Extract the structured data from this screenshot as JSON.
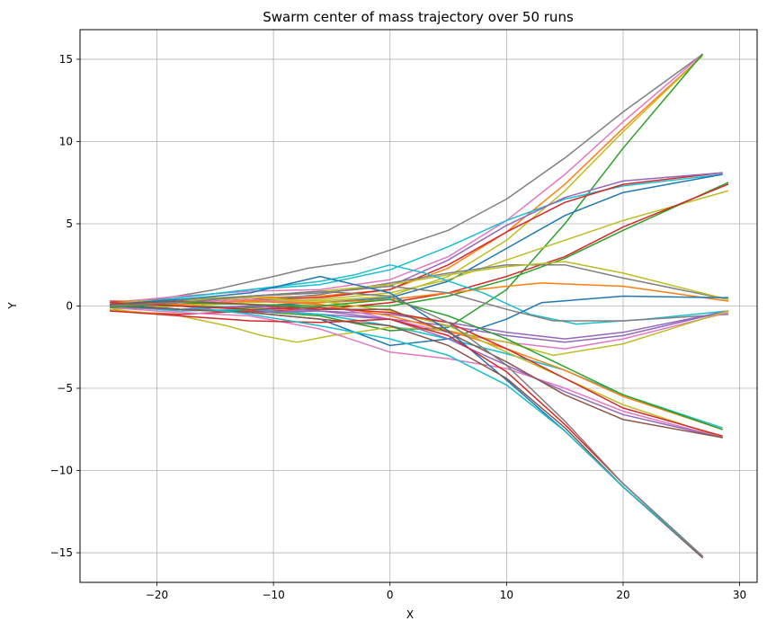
{
  "chart_data": {
    "type": "line",
    "title": "Swarm center of mass trajectory over 50 runs",
    "xlabel": "X",
    "ylabel": "Y",
    "xlim": [
      -26.6,
      31.5
    ],
    "ylim": [
      -16.8,
      16.8
    ],
    "xticks": [
      -20,
      -10,
      0,
      10,
      20,
      30
    ],
    "yticks": [
      -15,
      -10,
      -5,
      0,
      5,
      10,
      15
    ],
    "xtick_labels": [
      "−20",
      "−10",
      "0",
      "10",
      "20",
      "30"
    ],
    "ytick_labels": [
      "−15",
      "−10",
      "−5",
      "0",
      "5",
      "10",
      "15"
    ],
    "grid": true,
    "legend": "none",
    "series": [
      {
        "color": "#808080",
        "x": [
          -24,
          -20,
          -15,
          -10,
          -7,
          -3,
          0,
          5,
          10,
          15,
          20,
          26.8
        ],
        "y": [
          0.1,
          0.4,
          1.0,
          1.8,
          2.3,
          2.7,
          3.4,
          4.6,
          6.5,
          9.0,
          11.8,
          15.3
        ]
      },
      {
        "color": "#e377c2",
        "x": [
          -24,
          -18,
          -12,
          -6,
          0,
          5,
          10,
          15,
          20,
          26.8
        ],
        "y": [
          0.2,
          0.6,
          0.9,
          1.0,
          1.6,
          3.0,
          5.2,
          8.0,
          11.2,
          15.3
        ]
      },
      {
        "color": "#ff7f0e",
        "x": [
          -24,
          -18,
          -12,
          -6,
          0,
          5,
          10,
          15,
          20,
          26.8
        ],
        "y": [
          0.0,
          0.3,
          0.5,
          0.6,
          1.0,
          2.3,
          4.5,
          7.4,
          10.8,
          15.2
        ]
      },
      {
        "color": "#bcbd22",
        "x": [
          -24,
          -18,
          -12,
          -6,
          0,
          5,
          10,
          15,
          20,
          26.8
        ],
        "y": [
          -0.1,
          0.2,
          0.4,
          0.3,
          0.6,
          1.8,
          4.0,
          7.0,
          10.6,
          15.2
        ]
      },
      {
        "color": "#2ca02c",
        "x": [
          -24,
          -18,
          -12,
          -6,
          0,
          5,
          10,
          15,
          20,
          26.8
        ],
        "y": [
          0.1,
          -0.2,
          -0.3,
          -0.6,
          -1.5,
          -1.3,
          1.0,
          5.0,
          9.6,
          15.3
        ]
      },
      {
        "color": "#17becf",
        "x": [
          -24,
          -18,
          -12,
          -6,
          0,
          5,
          10,
          15,
          20,
          28.5
        ],
        "y": [
          0.0,
          0.5,
          1.0,
          1.3,
          2.2,
          3.6,
          5.2,
          6.5,
          7.3,
          8.0
        ]
      },
      {
        "color": "#d62728",
        "x": [
          -24,
          -18,
          -12,
          -6,
          0,
          5,
          10,
          15,
          20,
          28.5
        ],
        "y": [
          0.3,
          0.2,
          0.4,
          0.5,
          1.0,
          2.5,
          4.5,
          6.3,
          7.4,
          8.1
        ]
      },
      {
        "color": "#1f77b4",
        "x": [
          -24,
          -18,
          -12,
          -6,
          0,
          5,
          10,
          15,
          20,
          28.5
        ],
        "y": [
          0.2,
          -0.2,
          0.0,
          0.2,
          0.5,
          1.5,
          3.5,
          5.5,
          6.9,
          8.0
        ]
      },
      {
        "color": "#9467bd",
        "x": [
          -24,
          -18,
          -12,
          -6,
          0,
          5,
          10,
          15,
          20,
          28.5
        ],
        "y": [
          0.0,
          0.3,
          0.6,
          0.8,
          1.2,
          2.8,
          4.9,
          6.6,
          7.6,
          8.1
        ]
      },
      {
        "color": "#bcbd22",
        "x": [
          -24,
          -18,
          -12,
          -6,
          0,
          5,
          10,
          15,
          20,
          29
        ],
        "y": [
          -0.2,
          0.0,
          0.2,
          0.4,
          0.8,
          1.6,
          2.8,
          4.0,
          5.2,
          7.0
        ]
      },
      {
        "color": "#2ca02c",
        "x": [
          -24,
          -18,
          -12,
          -6,
          0,
          5,
          10,
          15,
          20,
          29
        ],
        "y": [
          0.1,
          0.0,
          -0.1,
          0.0,
          0.0,
          0.6,
          1.6,
          2.9,
          4.6,
          7.5
        ]
      },
      {
        "color": "#d62728",
        "x": [
          -24,
          -18,
          -12,
          -6,
          0,
          5,
          10,
          15,
          20,
          29
        ],
        "y": [
          -0.3,
          -0.5,
          -0.3,
          -0.2,
          0.2,
          0.8,
          1.8,
          3.0,
          4.8,
          7.4
        ]
      },
      {
        "color": "#808080",
        "x": [
          -24,
          -18,
          -12,
          -6,
          0,
          5,
          10,
          15,
          20,
          29
        ],
        "y": [
          0.0,
          0.1,
          0.3,
          0.7,
          1.4,
          2.0,
          2.5,
          2.5,
          1.7,
          0.4
        ]
      },
      {
        "color": "#bcbd22",
        "x": [
          -24,
          -18,
          -12,
          -6,
          0,
          5,
          10,
          15,
          20,
          29
        ],
        "y": [
          0.2,
          0.4,
          0.6,
          0.9,
          1.3,
          1.9,
          2.4,
          2.7,
          2.0,
          0.4
        ]
      },
      {
        "color": "#ff7f0e",
        "x": [
          -24,
          -18,
          -12,
          -6,
          0,
          5,
          10,
          13,
          20,
          29
        ],
        "y": [
          -0.1,
          0.1,
          0.3,
          0.2,
          0.4,
          0.8,
          1.2,
          1.4,
          1.2,
          0.3
        ]
      },
      {
        "color": "#17becf",
        "x": [
          -24,
          -18,
          -12,
          -6,
          -3,
          0,
          3,
          8,
          12,
          16,
          22,
          29
        ],
        "y": [
          0.0,
          0.5,
          1.0,
          1.5,
          1.9,
          2.5,
          2.0,
          0.8,
          -0.5,
          -1.1,
          -0.8,
          -0.3
        ]
      },
      {
        "color": "#1f77b4",
        "x": [
          -24,
          -18,
          -12,
          -6,
          0,
          5,
          10,
          13,
          20,
          29
        ],
        "y": [
          0.1,
          -0.2,
          -0.4,
          -0.8,
          -2.4,
          -2.0,
          -0.8,
          0.2,
          0.6,
          0.5
        ]
      },
      {
        "color": "#808080",
        "x": [
          -24,
          -18,
          -12,
          -6,
          0,
          5,
          10,
          14,
          20,
          29
        ],
        "y": [
          0.0,
          0.3,
          0.6,
          0.8,
          1.2,
          0.8,
          -0.2,
          -0.9,
          -0.9,
          -0.5
        ]
      },
      {
        "color": "#9467bd",
        "x": [
          -24,
          -18,
          -12,
          -6,
          0,
          5,
          10,
          15,
          20,
          29
        ],
        "y": [
          -0.1,
          -0.2,
          0.0,
          -0.3,
          -0.5,
          -1.0,
          -1.6,
          -2.0,
          -1.6,
          -0.3
        ]
      },
      {
        "color": "#9467bd",
        "x": [
          -24,
          -18,
          -12,
          -6,
          0,
          5,
          10,
          15,
          20,
          29
        ],
        "y": [
          0.2,
          0.0,
          -0.2,
          -0.5,
          -0.8,
          -1.2,
          -1.8,
          -2.2,
          -1.8,
          -0.3
        ]
      },
      {
        "color": "#e377c2",
        "x": [
          -24,
          -18,
          -12,
          -6,
          0,
          5,
          10,
          15,
          20,
          29
        ],
        "y": [
          0.0,
          0.2,
          0.4,
          0.1,
          -0.8,
          -1.6,
          -2.2,
          -2.6,
          -2.0,
          -0.4
        ]
      },
      {
        "color": "#bcbd22",
        "x": [
          -24,
          -18,
          -14,
          -11,
          -8,
          -5,
          0,
          5,
          10,
          14,
          20,
          29
        ],
        "y": [
          -0.2,
          -0.6,
          -1.2,
          -1.8,
          -2.2,
          -1.8,
          -1.3,
          -1.5,
          -2.2,
          -3.0,
          -2.3,
          -0.3
        ]
      },
      {
        "color": "#17becf",
        "x": [
          -24,
          -18,
          -12,
          -6,
          0,
          5,
          10,
          15,
          20,
          28.5
        ],
        "y": [
          0.0,
          -0.3,
          -0.2,
          -0.5,
          -1.2,
          -2.0,
          -2.9,
          -3.9,
          -5.4,
          -7.4
        ]
      },
      {
        "color": "#ff7f0e",
        "x": [
          -24,
          -18,
          -12,
          -6,
          0,
          5,
          10,
          15,
          20,
          28.5
        ],
        "y": [
          0.2,
          0.1,
          0.3,
          0.1,
          -0.6,
          -1.5,
          -2.6,
          -3.9,
          -5.5,
          -7.5
        ]
      },
      {
        "color": "#bcbd22",
        "x": [
          -24,
          -18,
          -12,
          -6,
          0,
          5,
          10,
          15,
          20,
          28.5
        ],
        "y": [
          0.1,
          0.3,
          0.5,
          0.3,
          -0.3,
          -1.2,
          -2.8,
          -4.4,
          -6.0,
          -8.0
        ]
      },
      {
        "color": "#e377c2",
        "x": [
          -24,
          -18,
          -12,
          -6,
          0,
          5,
          10,
          15,
          20,
          28.5
        ],
        "y": [
          -0.1,
          -0.4,
          -0.6,
          -1.4,
          -2.8,
          -3.2,
          -3.8,
          -5.0,
          -6.4,
          -8.0
        ]
      },
      {
        "color": "#9467bd",
        "x": [
          -24,
          -18,
          -12,
          -6,
          0,
          5,
          10,
          15,
          20,
          28.5
        ],
        "y": [
          0.0,
          -0.2,
          -0.4,
          -0.3,
          -0.8,
          -2.0,
          -3.6,
          -5.2,
          -6.6,
          -8.0
        ]
      },
      {
        "color": "#1f77b4",
        "x": [
          -24,
          -18,
          -12,
          -6,
          0,
          5,
          10,
          15,
          20,
          26.8
        ],
        "y": [
          0.1,
          0.4,
          0.8,
          1.8,
          0.8,
          -1.5,
          -4.5,
          -7.6,
          -11.0,
          -15.2
        ]
      },
      {
        "color": "#8c564b",
        "x": [
          -24,
          -18,
          -12,
          -6,
          0,
          5,
          10,
          15,
          20,
          26.8
        ],
        "y": [
          0.0,
          -0.2,
          -0.4,
          -0.8,
          -1.2,
          -2.4,
          -4.4,
          -7.4,
          -11.0,
          -15.3
        ]
      },
      {
        "color": "#d62728",
        "x": [
          -24,
          -18,
          -12,
          -6,
          0,
          5,
          10,
          15,
          20,
          26.8
        ],
        "y": [
          -0.3,
          -0.6,
          -0.9,
          -1.0,
          -0.8,
          -1.8,
          -4.0,
          -7.2,
          -10.8,
          -15.2
        ]
      },
      {
        "color": "#17becf",
        "x": [
          -24,
          -18,
          -12,
          -6,
          0,
          5,
          10,
          15,
          20,
          26.8
        ],
        "y": [
          0.2,
          0.0,
          -0.5,
          -1.2,
          -2.0,
          -3.0,
          -4.8,
          -7.6,
          -11.0,
          -15.2
        ]
      },
      {
        "color": "#2ca02c",
        "x": [
          -24,
          -18,
          -12,
          -6,
          0,
          5,
          10,
          15,
          20,
          28.5
        ],
        "y": [
          -0.1,
          0.2,
          0.1,
          0.0,
          0.4,
          -0.6,
          -2.0,
          -3.7,
          -5.4,
          -7.5
        ]
      },
      {
        "color": "#d62728",
        "x": [
          -24,
          -18,
          -12,
          -6,
          0,
          5,
          10,
          15,
          20,
          28.5
        ],
        "y": [
          0.2,
          0.0,
          -0.2,
          -0.1,
          -0.4,
          -1.0,
          -2.6,
          -4.4,
          -6.2,
          -7.9
        ]
      },
      {
        "color": "#8c564b",
        "x": [
          -24,
          -18,
          -12,
          -6,
          0,
          5,
          10,
          15,
          20,
          28.5
        ],
        "y": [
          0.1,
          0.3,
          0.1,
          -0.2,
          -0.2,
          -1.6,
          -3.4,
          -5.4,
          -6.9,
          -8.0
        ]
      },
      {
        "color": "#7f7f7f",
        "x": [
          -24,
          -18,
          -12,
          -6,
          0,
          5,
          10,
          15,
          20,
          26.8
        ],
        "y": [
          0.0,
          0.2,
          0.6,
          0.9,
          0.6,
          -1.0,
          -3.6,
          -7.0,
          -10.8,
          -15.2
        ]
      }
    ]
  }
}
